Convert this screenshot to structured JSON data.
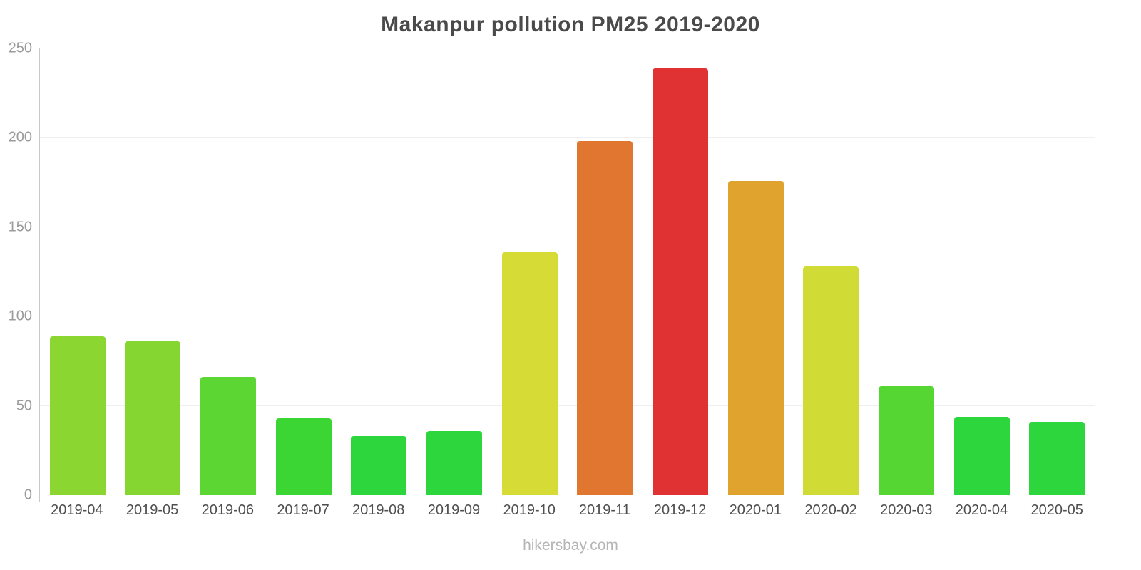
{
  "chart_data": {
    "type": "bar",
    "title": "Makanpur pollution PM25 2019-2020",
    "categories": [
      "2019-04",
      "2019-05",
      "2019-06",
      "2019-07",
      "2019-08",
      "2019-09",
      "2019-10",
      "2019-11",
      "2019-12",
      "2020-01",
      "2020-02",
      "2020-03",
      "2020-04",
      "2020-05"
    ],
    "values": [
      89,
      86,
      66,
      43,
      33,
      36,
      136,
      198,
      239,
      176,
      128,
      61,
      44,
      41
    ],
    "colors": [
      "#8cd632",
      "#86d632",
      "#5cd633",
      "#3bd633",
      "#2ed63e",
      "#2ed63e",
      "#d6db35",
      "#e0762f",
      "#e03232",
      "#dfa32e",
      "#d0db35",
      "#55d633",
      "#2ed63e",
      "#2ed63e"
    ],
    "xlabel": "",
    "ylabel": "",
    "ylim": [
      0,
      250
    ],
    "yticks": [
      0,
      50,
      100,
      150,
      200,
      250
    ],
    "grid": "horizontal-faint",
    "legend": "none",
    "footer": "hikersbay.com"
  }
}
